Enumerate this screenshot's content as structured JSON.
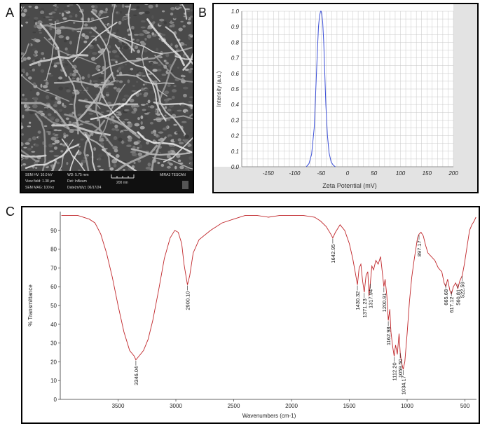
{
  "panels": {
    "a": "A",
    "b": "B",
    "c": "C"
  },
  "sem": {
    "hv": "SEM HV: 10.0 kV",
    "wd": "WD: 5.75 mm",
    "view": "View field: 1.38 µm",
    "det": "Det: InBeam",
    "mag": "SEM MAG: 100 kx",
    "date": "Date(m/d/y): 06/17/24",
    "scale": "200 nm",
    "brand": "MIRA3 TESCAN"
  },
  "chart_data": [
    {
      "type": "line",
      "panel": "B",
      "title": "",
      "xlabel": "Zeta Potential (mV)",
      "ylabel": "Intensity (a.u.)",
      "xlim": [
        -200,
        200
      ],
      "ylim": [
        0,
        1
      ],
      "xticks": [
        "-150",
        "-100",
        "-50",
        "0",
        "50",
        "100",
        "150",
        "200"
      ],
      "yticks": [
        "0.0",
        "0.1",
        "0.2",
        "0.3",
        "0.4",
        "0.5",
        "0.6",
        "0.7",
        "0.8",
        "0.9",
        "1.0"
      ],
      "grid": true,
      "line_color": "#3a4ed6",
      "series": [
        {
          "x": [
            -78,
            -73,
            -68,
            -63,
            -60,
            -57,
            -55,
            -53,
            -51,
            -50,
            -49,
            -47,
            -45,
            -43,
            -41,
            -38,
            -35,
            -31,
            -27,
            -23
          ],
          "y": [
            0.0,
            0.02,
            0.08,
            0.25,
            0.5,
            0.75,
            0.9,
            0.97,
            1.0,
            1.0,
            0.99,
            0.93,
            0.8,
            0.6,
            0.4,
            0.2,
            0.09,
            0.03,
            0.01,
            0.0
          ]
        }
      ]
    },
    {
      "type": "line",
      "panel": "C",
      "title": "",
      "xlabel": "Wavenumbers (cm-1)",
      "ylabel": "% Transmittance",
      "xlim": [
        4000,
        400
      ],
      "ylim": [
        0,
        100
      ],
      "xticks": [
        "3500",
        "3000",
        "2500",
        "2000",
        "1500",
        "1000",
        "500"
      ],
      "yticks": [
        "0",
        "10",
        "20",
        "30",
        "40",
        "50",
        "60",
        "70",
        "80",
        "90"
      ],
      "grid": false,
      "line_color": "#c0262a",
      "series": [
        {
          "x": [
            3990,
            3850,
            3750,
            3700,
            3650,
            3600,
            3550,
            3500,
            3450,
            3400,
            3360,
            3346,
            3320,
            3280,
            3240,
            3200,
            3150,
            3100,
            3050,
            3010,
            2980,
            2950,
            2930,
            2900,
            2880,
            2850,
            2800,
            2700,
            2600,
            2500,
            2400,
            2300,
            2200,
            2100,
            2000,
            1900,
            1800,
            1750,
            1700,
            1660,
            1643,
            1620,
            1580,
            1540,
            1500,
            1470,
            1450,
            1430,
            1415,
            1400,
            1385,
            1371,
            1355,
            1340,
            1330,
            1318,
            1305,
            1290,
            1270,
            1250,
            1230,
            1215,
            1201,
            1190,
            1175,
            1163,
            1150,
            1140,
            1125,
            1112,
            1100,
            1085,
            1070,
            1060,
            1050,
            1034,
            1020,
            1000,
            980,
            960,
            940,
            920,
            910,
            897,
            880,
            860,
            840,
            820,
            790,
            760,
            730,
            700,
            680,
            666,
            650,
            630,
            617,
            600,
            580,
            561,
            545,
            523,
            505,
            480,
            460,
            440,
            420,
            405
          ],
          "y": [
            98,
            98,
            96,
            94,
            88,
            78,
            65,
            50,
            36,
            26,
            23,
            21,
            23,
            26,
            32,
            42,
            58,
            75,
            86,
            90,
            89,
            83,
            72,
            61,
            66,
            78,
            85,
            90,
            94,
            96,
            98,
            98,
            97,
            98,
            98,
            98,
            97,
            95,
            92,
            88,
            86,
            89,
            93,
            90,
            83,
            75,
            68,
            61,
            70,
            72,
            63,
            57,
            66,
            68,
            55,
            62,
            71,
            69,
            74,
            72,
            76,
            68,
            60,
            64,
            55,
            42,
            48,
            36,
            28,
            23,
            29,
            24,
            35,
            25,
            20,
            16,
            20,
            35,
            52,
            65,
            74,
            82,
            86,
            88,
            89,
            87,
            82,
            78,
            76,
            74,
            70,
            68,
            62,
            60,
            64,
            58,
            56,
            60,
            62,
            59,
            63,
            66,
            72,
            82,
            90,
            93,
            95,
            97
          ]
        }
      ],
      "annotations": [
        {
          "wavenumber": 3346,
          "label": "3346.04",
          "at": 21
        },
        {
          "wavenumber": 2900,
          "label": "2900.10",
          "at": 61
        },
        {
          "wavenumber": 1643,
          "label": "1642.95",
          "at": 86
        },
        {
          "wavenumber": 1430,
          "label": "1430.32",
          "at": 61
        },
        {
          "wavenumber": 1371,
          "label": "1371.23",
          "at": 57
        },
        {
          "wavenumber": 1318,
          "label": "1317.94",
          "at": 62
        },
        {
          "wavenumber": 1201,
          "label": "1200.91",
          "at": 60
        },
        {
          "wavenumber": 1163,
          "label": "1162.98",
          "at": 42
        },
        {
          "wavenumber": 1112,
          "label": "1112.20",
          "at": 23
        },
        {
          "wavenumber": 1060,
          "label": "1059.50",
          "at": 25
        },
        {
          "wavenumber": 1034,
          "label": "1034.17",
          "at": 16
        },
        {
          "wavenumber": 897,
          "label": "897.17",
          "at": 88
        },
        {
          "wavenumber": 666,
          "label": "665.68",
          "at": 62
        },
        {
          "wavenumber": 617,
          "label": "617.12",
          "at": 58
        },
        {
          "wavenumber": 561,
          "label": "560.81",
          "at": 62
        },
        {
          "wavenumber": 523,
          "label": "522.59",
          "at": 66
        }
      ]
    }
  ]
}
